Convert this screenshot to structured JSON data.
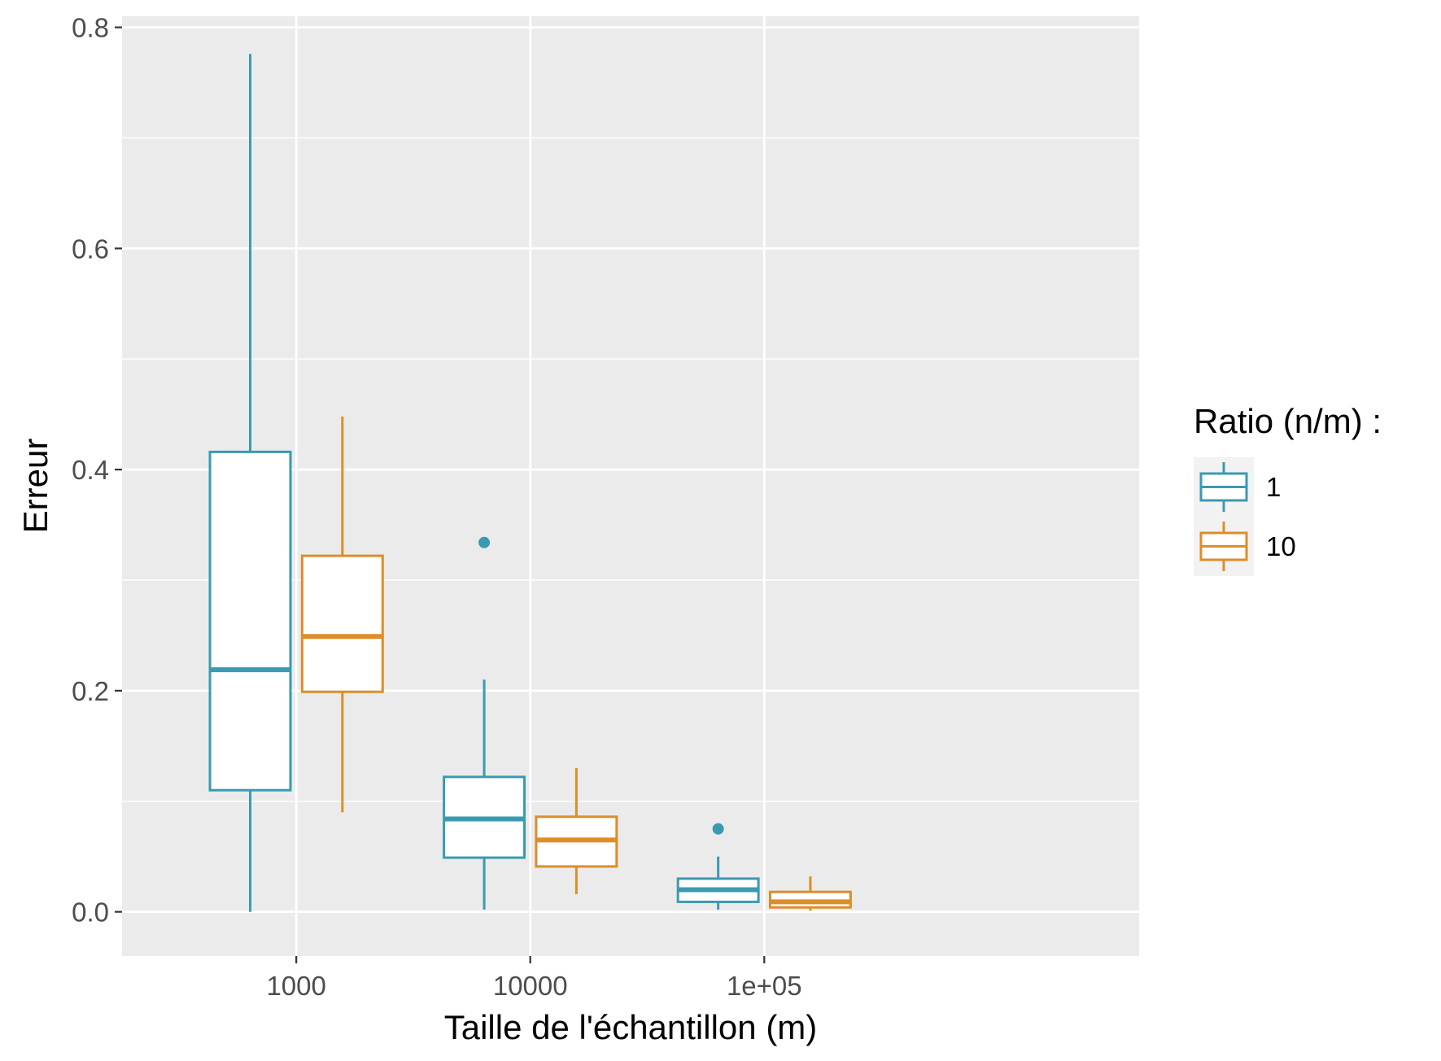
{
  "chart_data": {
    "type": "boxplot",
    "title": "",
    "xlabel": "Taille de l'échantillon (m)",
    "ylabel": "Erreur",
    "x_scale": "log10",
    "x_ticks": [
      "1000",
      "10000",
      "1e+05"
    ],
    "x_tick_values": [
      1000,
      10000,
      100000
    ],
    "xlim": [
      180,
      4000000
    ],
    "ylim": [
      -0.04,
      0.81
    ],
    "y_ticks": [
      "0.0",
      "0.2",
      "0.4",
      "0.6",
      "0.8"
    ],
    "y_tick_values": [
      0.0,
      0.2,
      0.4,
      0.6,
      0.8
    ],
    "y_minor_gridlines": [
      0.1,
      0.3,
      0.5,
      0.7
    ],
    "grid": true,
    "panel_background": "#EBEBEB",
    "gridline_color": "#FFFFFF",
    "legend": {
      "title": "Ratio (n/m) :",
      "position": "right",
      "entries": [
        {
          "label": "1",
          "color": "#3A9AB2"
        },
        {
          "label": "10",
          "color": "#DD8D29"
        }
      ]
    },
    "series": [
      {
        "name": "1",
        "color": "#3A9AB2",
        "boxes": [
          {
            "x": 1000,
            "whisker_low": 0.0,
            "q1": 0.11,
            "median": 0.219,
            "q3": 0.416,
            "whisker_high": 0.776,
            "outliers": []
          },
          {
            "x": 10000,
            "whisker_low": 0.002,
            "q1": 0.049,
            "median": 0.084,
            "q3": 0.122,
            "whisker_high": 0.21,
            "outliers": [
              0.334
            ]
          },
          {
            "x": 100000,
            "whisker_low": 0.002,
            "q1": 0.009,
            "median": 0.02,
            "q3": 0.03,
            "whisker_high": 0.05,
            "outliers": [
              0.075
            ]
          }
        ]
      },
      {
        "name": "10",
        "color": "#DD8D29",
        "boxes": [
          {
            "x": 1000,
            "whisker_low": 0.09,
            "q1": 0.199,
            "median": 0.249,
            "q3": 0.322,
            "whisker_high": 0.448,
            "outliers": []
          },
          {
            "x": 10000,
            "whisker_low": 0.016,
            "q1": 0.041,
            "median": 0.065,
            "q3": 0.086,
            "whisker_high": 0.13,
            "outliers": []
          },
          {
            "x": 100000,
            "whisker_low": 0.001,
            "q1": 0.004,
            "median": 0.009,
            "q3": 0.018,
            "whisker_high": 0.032,
            "outliers": []
          }
        ]
      }
    ]
  }
}
